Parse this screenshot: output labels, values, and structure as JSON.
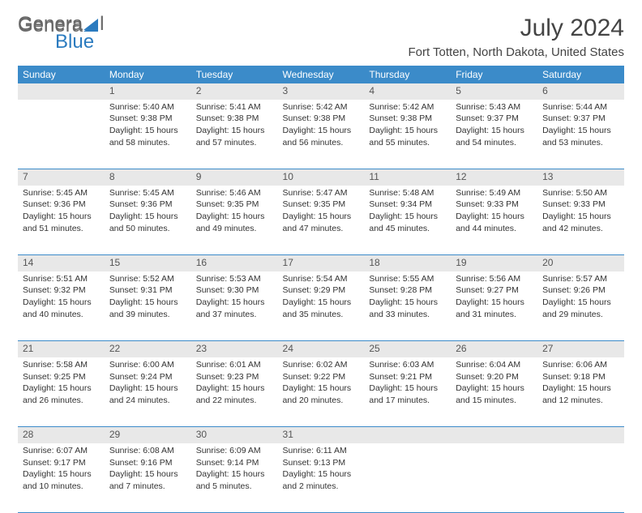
{
  "logo": {
    "part1": "Gener",
    "part2": "l",
    "part3": "Blue"
  },
  "title": "July 2024",
  "location": "Fort Totten, North Dakota, United States",
  "colors": {
    "header_bg": "#3b8bc9",
    "daynum_bg": "#e8e8e8",
    "text": "#333333",
    "rule": "#3b8bc9"
  },
  "day_headers": [
    "Sunday",
    "Monday",
    "Tuesday",
    "Wednesday",
    "Thursday",
    "Friday",
    "Saturday"
  ],
  "weeks": [
    {
      "nums": [
        "",
        "1",
        "2",
        "3",
        "4",
        "5",
        "6"
      ],
      "cells": [
        null,
        {
          "sunrise": "Sunrise: 5:40 AM",
          "sunset": "Sunset: 9:38 PM",
          "day1": "Daylight: 15 hours",
          "day2": "and 58 minutes."
        },
        {
          "sunrise": "Sunrise: 5:41 AM",
          "sunset": "Sunset: 9:38 PM",
          "day1": "Daylight: 15 hours",
          "day2": "and 57 minutes."
        },
        {
          "sunrise": "Sunrise: 5:42 AM",
          "sunset": "Sunset: 9:38 PM",
          "day1": "Daylight: 15 hours",
          "day2": "and 56 minutes."
        },
        {
          "sunrise": "Sunrise: 5:42 AM",
          "sunset": "Sunset: 9:38 PM",
          "day1": "Daylight: 15 hours",
          "day2": "and 55 minutes."
        },
        {
          "sunrise": "Sunrise: 5:43 AM",
          "sunset": "Sunset: 9:37 PM",
          "day1": "Daylight: 15 hours",
          "day2": "and 54 minutes."
        },
        {
          "sunrise": "Sunrise: 5:44 AM",
          "sunset": "Sunset: 9:37 PM",
          "day1": "Daylight: 15 hours",
          "day2": "and 53 minutes."
        }
      ]
    },
    {
      "nums": [
        "7",
        "8",
        "9",
        "10",
        "11",
        "12",
        "13"
      ],
      "cells": [
        {
          "sunrise": "Sunrise: 5:45 AM",
          "sunset": "Sunset: 9:36 PM",
          "day1": "Daylight: 15 hours",
          "day2": "and 51 minutes."
        },
        {
          "sunrise": "Sunrise: 5:45 AM",
          "sunset": "Sunset: 9:36 PM",
          "day1": "Daylight: 15 hours",
          "day2": "and 50 minutes."
        },
        {
          "sunrise": "Sunrise: 5:46 AM",
          "sunset": "Sunset: 9:35 PM",
          "day1": "Daylight: 15 hours",
          "day2": "and 49 minutes."
        },
        {
          "sunrise": "Sunrise: 5:47 AM",
          "sunset": "Sunset: 9:35 PM",
          "day1": "Daylight: 15 hours",
          "day2": "and 47 minutes."
        },
        {
          "sunrise": "Sunrise: 5:48 AM",
          "sunset": "Sunset: 9:34 PM",
          "day1": "Daylight: 15 hours",
          "day2": "and 45 minutes."
        },
        {
          "sunrise": "Sunrise: 5:49 AM",
          "sunset": "Sunset: 9:33 PM",
          "day1": "Daylight: 15 hours",
          "day2": "and 44 minutes."
        },
        {
          "sunrise": "Sunrise: 5:50 AM",
          "sunset": "Sunset: 9:33 PM",
          "day1": "Daylight: 15 hours",
          "day2": "and 42 minutes."
        }
      ]
    },
    {
      "nums": [
        "14",
        "15",
        "16",
        "17",
        "18",
        "19",
        "20"
      ],
      "cells": [
        {
          "sunrise": "Sunrise: 5:51 AM",
          "sunset": "Sunset: 9:32 PM",
          "day1": "Daylight: 15 hours",
          "day2": "and 40 minutes."
        },
        {
          "sunrise": "Sunrise: 5:52 AM",
          "sunset": "Sunset: 9:31 PM",
          "day1": "Daylight: 15 hours",
          "day2": "and 39 minutes."
        },
        {
          "sunrise": "Sunrise: 5:53 AM",
          "sunset": "Sunset: 9:30 PM",
          "day1": "Daylight: 15 hours",
          "day2": "and 37 minutes."
        },
        {
          "sunrise": "Sunrise: 5:54 AM",
          "sunset": "Sunset: 9:29 PM",
          "day1": "Daylight: 15 hours",
          "day2": "and 35 minutes."
        },
        {
          "sunrise": "Sunrise: 5:55 AM",
          "sunset": "Sunset: 9:28 PM",
          "day1": "Daylight: 15 hours",
          "day2": "and 33 minutes."
        },
        {
          "sunrise": "Sunrise: 5:56 AM",
          "sunset": "Sunset: 9:27 PM",
          "day1": "Daylight: 15 hours",
          "day2": "and 31 minutes."
        },
        {
          "sunrise": "Sunrise: 5:57 AM",
          "sunset": "Sunset: 9:26 PM",
          "day1": "Daylight: 15 hours",
          "day2": "and 29 minutes."
        }
      ]
    },
    {
      "nums": [
        "21",
        "22",
        "23",
        "24",
        "25",
        "26",
        "27"
      ],
      "cells": [
        {
          "sunrise": "Sunrise: 5:58 AM",
          "sunset": "Sunset: 9:25 PM",
          "day1": "Daylight: 15 hours",
          "day2": "and 26 minutes."
        },
        {
          "sunrise": "Sunrise: 6:00 AM",
          "sunset": "Sunset: 9:24 PM",
          "day1": "Daylight: 15 hours",
          "day2": "and 24 minutes."
        },
        {
          "sunrise": "Sunrise: 6:01 AM",
          "sunset": "Sunset: 9:23 PM",
          "day1": "Daylight: 15 hours",
          "day2": "and 22 minutes."
        },
        {
          "sunrise": "Sunrise: 6:02 AM",
          "sunset": "Sunset: 9:22 PM",
          "day1": "Daylight: 15 hours",
          "day2": "and 20 minutes."
        },
        {
          "sunrise": "Sunrise: 6:03 AM",
          "sunset": "Sunset: 9:21 PM",
          "day1": "Daylight: 15 hours",
          "day2": "and 17 minutes."
        },
        {
          "sunrise": "Sunrise: 6:04 AM",
          "sunset": "Sunset: 9:20 PM",
          "day1": "Daylight: 15 hours",
          "day2": "and 15 minutes."
        },
        {
          "sunrise": "Sunrise: 6:06 AM",
          "sunset": "Sunset: 9:18 PM",
          "day1": "Daylight: 15 hours",
          "day2": "and 12 minutes."
        }
      ]
    },
    {
      "nums": [
        "28",
        "29",
        "30",
        "31",
        "",
        "",
        ""
      ],
      "cells": [
        {
          "sunrise": "Sunrise: 6:07 AM",
          "sunset": "Sunset: 9:17 PM",
          "day1": "Daylight: 15 hours",
          "day2": "and 10 minutes."
        },
        {
          "sunrise": "Sunrise: 6:08 AM",
          "sunset": "Sunset: 9:16 PM",
          "day1": "Daylight: 15 hours",
          "day2": "and 7 minutes."
        },
        {
          "sunrise": "Sunrise: 6:09 AM",
          "sunset": "Sunset: 9:14 PM",
          "day1": "Daylight: 15 hours",
          "day2": "and 5 minutes."
        },
        {
          "sunrise": "Sunrise: 6:11 AM",
          "sunset": "Sunset: 9:13 PM",
          "day1": "Daylight: 15 hours",
          "day2": "and 2 minutes."
        },
        null,
        null,
        null
      ]
    }
  ]
}
